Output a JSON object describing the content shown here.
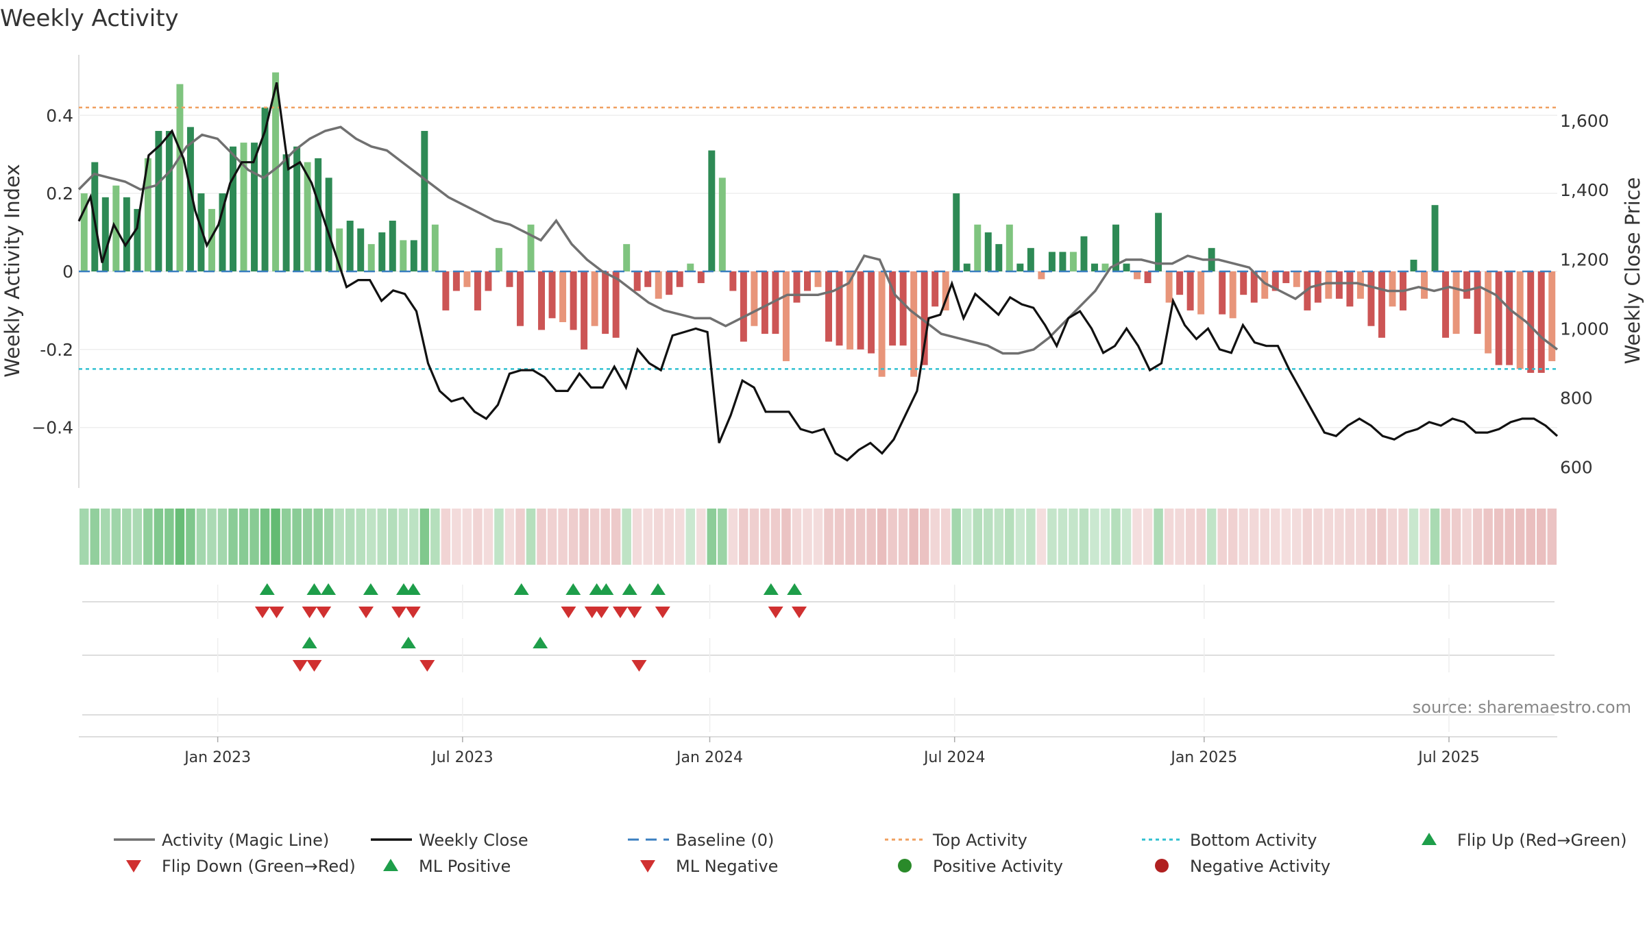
{
  "chart_data": {
    "type": "bar",
    "title": "Weekly Activity",
    "ylabel": "Weekly Activity Index",
    "y2label": "Weekly Close Price",
    "ylim": [
      -0.555,
      0.555
    ],
    "y2lim": [
      540,
      1790
    ],
    "yticks": [
      {
        "value": 0.4,
        "label": "0.4"
      },
      {
        "value": 0.2,
        "label": "0.2"
      },
      {
        "value": 0,
        "label": "0"
      },
      {
        "value": -0.2,
        "label": "-0.2"
      },
      {
        "value": -0.4,
        "label": "−0.4"
      }
    ],
    "y2ticks": [
      {
        "value": 1600,
        "label": "1,600"
      },
      {
        "value": 1400,
        "label": "1,400"
      },
      {
        "value": 1200,
        "label": "1,200"
      },
      {
        "value": 1000,
        "label": "1,000"
      },
      {
        "value": 800,
        "label": "800"
      },
      {
        "value": 600,
        "label": "600"
      }
    ],
    "xticks": [
      {
        "week": 29.5,
        "label": "Jan 2023"
      },
      {
        "week": 81.5,
        "label": "Jul 2023"
      },
      {
        "week": 134,
        "label": "Jan 2024"
      },
      {
        "week": 186,
        "label": "Jul 2024"
      },
      {
        "week": 239,
        "label": "Jan 2025"
      },
      {
        "week": 291,
        "label": "Jul 2025"
      }
    ],
    "weeks": 314,
    "activity": [
      0.2,
      0.28,
      0.19,
      0.22,
      0.19,
      0.16,
      0.29,
      0.36,
      0.36,
      0.48,
      0.37,
      0.2,
      0.16,
      0.2,
      0.32,
      0.33,
      0.33,
      0.42,
      0.51,
      0.3,
      0.32,
      0.28,
      0.29,
      0.24,
      0.11,
      0.13,
      0.11,
      0.07,
      0.1,
      0.13,
      0.08,
      0.08,
      0.36,
      0.12,
      -0.1,
      -0.05,
      -0.04,
      -0.1,
      -0.05,
      0.06,
      -0.04,
      -0.14,
      0.12,
      -0.15,
      -0.12,
      -0.13,
      -0.15,
      -0.2,
      -0.14,
      -0.16,
      -0.17,
      0.07,
      -0.05,
      -0.04,
      -0.07,
      -0.06,
      -0.04,
      0.02,
      -0.03,
      0.31,
      0.24,
      -0.05,
      -0.18,
      -0.14,
      -0.16,
      -0.16,
      -0.23,
      -0.08,
      -0.05,
      -0.04,
      -0.18,
      -0.19,
      -0.2,
      -0.2,
      -0.21,
      -0.27,
      -0.19,
      -0.19,
      -0.27,
      -0.24,
      -0.09,
      -0.1,
      0.2,
      0.02,
      0.12,
      0.1,
      0.07,
      0.12,
      0.02,
      0.06,
      -0.02,
      0.05,
      0.05,
      0.05,
      0.09,
      0.02,
      0.02,
      0.12,
      0.02,
      -0.02,
      -0.03,
      0.15,
      -0.08,
      -0.06,
      -0.1,
      -0.11,
      0.06,
      -0.11,
      -0.12,
      -0.06,
      -0.08,
      -0.07,
      -0.05,
      -0.03,
      -0.04,
      -0.1,
      -0.08,
      -0.07,
      -0.07,
      -0.09,
      -0.07,
      -0.14,
      -0.17,
      -0.09,
      -0.1,
      0.03,
      -0.07,
      0.17,
      -0.17,
      -0.16,
      -0.07,
      -0.16,
      -0.21,
      -0.24,
      -0.24,
      -0.25,
      -0.26,
      -0.26,
      -0.23
    ],
    "activity_weeks_note": "index i maps to bar number i*2+1 across 314 weekly slots (thinned)",
    "magic_line": [
      0.21,
      0.25,
      0.24,
      0.23,
      0.21,
      0.22,
      0.26,
      0.32,
      0.35,
      0.34,
      0.3,
      0.26,
      0.24,
      0.27,
      0.31,
      0.34,
      0.36,
      0.37,
      0.34,
      0.32,
      0.31,
      0.28,
      0.25,
      0.22,
      0.19,
      0.17,
      0.15,
      0.13,
      0.12,
      0.1,
      0.08,
      0.13,
      0.07,
      0.03,
      0,
      -0.02,
      -0.05,
      -0.08,
      -0.1,
      -0.11,
      -0.12,
      -0.12,
      -0.14,
      -0.12,
      -0.1,
      -0.08,
      -0.06,
      -0.06,
      -0.06,
      -0.05,
      -0.03,
      0.04,
      0.03,
      -0.06,
      -0.1,
      -0.13,
      -0.16,
      -0.17,
      -0.18,
      -0.19,
      -0.21,
      -0.21,
      -0.2,
      -0.17,
      -0.13,
      -0.09,
      -0.05,
      0.01,
      0.03,
      0.03,
      0.02,
      0.02,
      0.04,
      0.03,
      0.03,
      0.02,
      0.01,
      -0.03,
      -0.05,
      -0.07,
      -0.04,
      -0.03,
      -0.03,
      -0.03,
      -0.04,
      -0.05,
      -0.05,
      -0.04,
      -0.05,
      -0.04,
      -0.05,
      -0.04,
      -0.06,
      -0.1,
      -0.13,
      -0.17,
      -0.2
    ],
    "close": [
      1310,
      1380,
      1190,
      1300,
      1240,
      1290,
      1500,
      1530,
      1570,
      1490,
      1340,
      1240,
      1300,
      1420,
      1480,
      1480,
      1570,
      1710,
      1460,
      1480,
      1420,
      1320,
      1220,
      1120,
      1140,
      1140,
      1080,
      1110,
      1100,
      1050,
      900,
      820,
      790,
      800,
      760,
      740,
      780,
      870,
      880,
      880,
      860,
      820,
      820,
      870,
      830,
      830,
      890,
      830,
      940,
      900,
      880,
      980,
      990,
      1000,
      990,
      670,
      750,
      850,
      830,
      760,
      760,
      760,
      710,
      700,
      710,
      640,
      620,
      650,
      670,
      640,
      680,
      750,
      820,
      1030,
      1040,
      1130,
      1030,
      1100,
      1070,
      1040,
      1090,
      1070,
      1060,
      1010,
      950,
      1030,
      1050,
      1000,
      930,
      950,
      1000,
      950,
      880,
      900,
      1080,
      1010,
      970,
      1000,
      940,
      930,
      1010,
      960,
      950,
      950,
      880,
      820,
      760,
      700,
      690,
      720,
      740,
      720,
      690,
      680,
      700,
      710,
      730,
      720,
      740,
      730,
      700,
      700,
      710,
      730,
      740,
      740,
      720,
      690
    ],
    "top_activity": 0.42,
    "bottom_activity": -0.25,
    "sentiment_row_label": "",
    "flip_up_weeks": [
      40,
      50,
      53,
      62,
      69,
      71,
      94,
      105,
      110,
      112,
      117,
      123,
      147,
      152
    ],
    "flip_down_weeks": [
      39,
      42,
      49,
      52,
      61,
      68,
      71,
      104,
      109,
      111,
      115,
      118,
      124,
      148,
      153
    ],
    "ml_positive_weeks": [
      49,
      70,
      98
    ],
    "ml_negative_weeks": [
      47,
      50,
      74,
      119
    ],
    "source_note": "source: sharemaestro.com",
    "legend": [
      {
        "label": "Activity (Magic Line)",
        "kind": "line",
        "color": "#707070"
      },
      {
        "label": "Weekly Close",
        "kind": "line",
        "color": "#111111"
      },
      {
        "label": "Baseline (0)",
        "kind": "dash",
        "color": "#3a7fc0"
      },
      {
        "label": "Top Activity",
        "kind": "dot",
        "color": "#f0a060"
      },
      {
        "label": "Bottom Activity",
        "kind": "dot",
        "color": "#30c0d0"
      },
      {
        "label": "Flip Up (Red→Green)",
        "kind": "up",
        "color": "#1e9e4a"
      },
      {
        "label": "Flip Down (Green→Red)",
        "kind": "down",
        "color": "#d03030"
      },
      {
        "label": "ML Positive",
        "kind": "up",
        "color": "#1e9e4a"
      },
      {
        "label": "ML Negative",
        "kind": "down",
        "color": "#d03030"
      },
      {
        "label": "Positive Activity",
        "kind": "circle",
        "color": "#2a8a2a"
      },
      {
        "label": "Negative Activity",
        "kind": "circle",
        "color": "#b02020"
      }
    ],
    "colors": {
      "pos_dark": "#2e8a55",
      "pos_light": "#7fc47f",
      "neg_dark": "#cc5555",
      "neg_light": "#e8957a",
      "close": "#111111",
      "magic": "#707070",
      "baseline": "#3a7fc0",
      "top": "#f0a060",
      "bottom": "#30c0d0",
      "up": "#1e9e4a",
      "down": "#d03030"
    }
  }
}
